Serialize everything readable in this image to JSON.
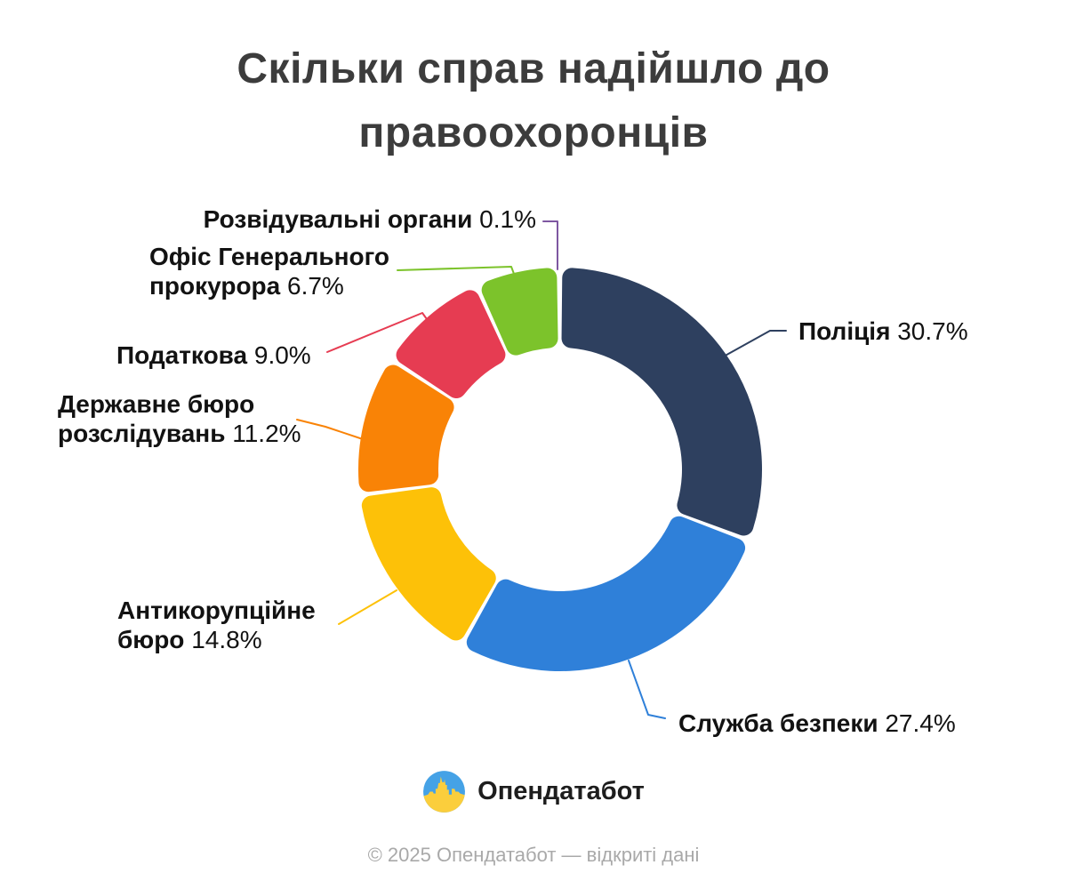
{
  "title": {
    "line1": "Скільки справ надійшло до",
    "line2": "правоохоронців"
  },
  "chart_data": {
    "type": "pie",
    "style": "donut",
    "title": "Скільки справ надійшло до правоохоронців",
    "unit": "%",
    "legend_position": "labels-with-leader-lines",
    "slices": [
      {
        "id": "police",
        "label": "Поліція",
        "label_lines": [
          "Поліція"
        ],
        "value": 30.7,
        "pct_text": "30.7%",
        "color": "#2e405f"
      },
      {
        "id": "security-service",
        "label": "Служба безпеки",
        "label_lines": [
          "Служба безпеки"
        ],
        "value": 27.4,
        "pct_text": "27.4%",
        "color": "#2f80d9"
      },
      {
        "id": "anticorruption-bureau",
        "label": "Антикорупційне бюро",
        "label_lines": [
          "Антикорупційне",
          "бюро"
        ],
        "value": 14.8,
        "pct_text": "14.8%",
        "color": "#fdc108"
      },
      {
        "id": "state-bureau",
        "label": "Державне бюро розслідувань",
        "label_lines": [
          "Державне бюро",
          "розслідувань"
        ],
        "value": 11.2,
        "pct_text": "11.2%",
        "color": "#f98306"
      },
      {
        "id": "tax-service",
        "label": "Податкова",
        "label_lines": [
          "Податкова"
        ],
        "value": 9.0,
        "pct_text": "9.0%",
        "color": "#e63c52"
      },
      {
        "id": "prosecutor-general-office",
        "label": "Офіс Генерального прокурора",
        "label_lines": [
          "Офіс Генерального",
          "прокурора"
        ],
        "value": 6.7,
        "pct_text": "6.7%",
        "color": "#7cc32b"
      },
      {
        "id": "intelligence",
        "label": "Розвідувальні органи",
        "label_lines": [
          "Розвідувальні органи"
        ],
        "value": 0.1,
        "pct_text": "0.1%",
        "color": "#7e57a1"
      }
    ]
  },
  "logo": {
    "text": "Опендатабот",
    "colors": {
      "blue": "#45a2e6",
      "yellow": "#fbce3c"
    }
  },
  "footer": {
    "text": "© 2025 Опендатабот — відкриті дані"
  }
}
